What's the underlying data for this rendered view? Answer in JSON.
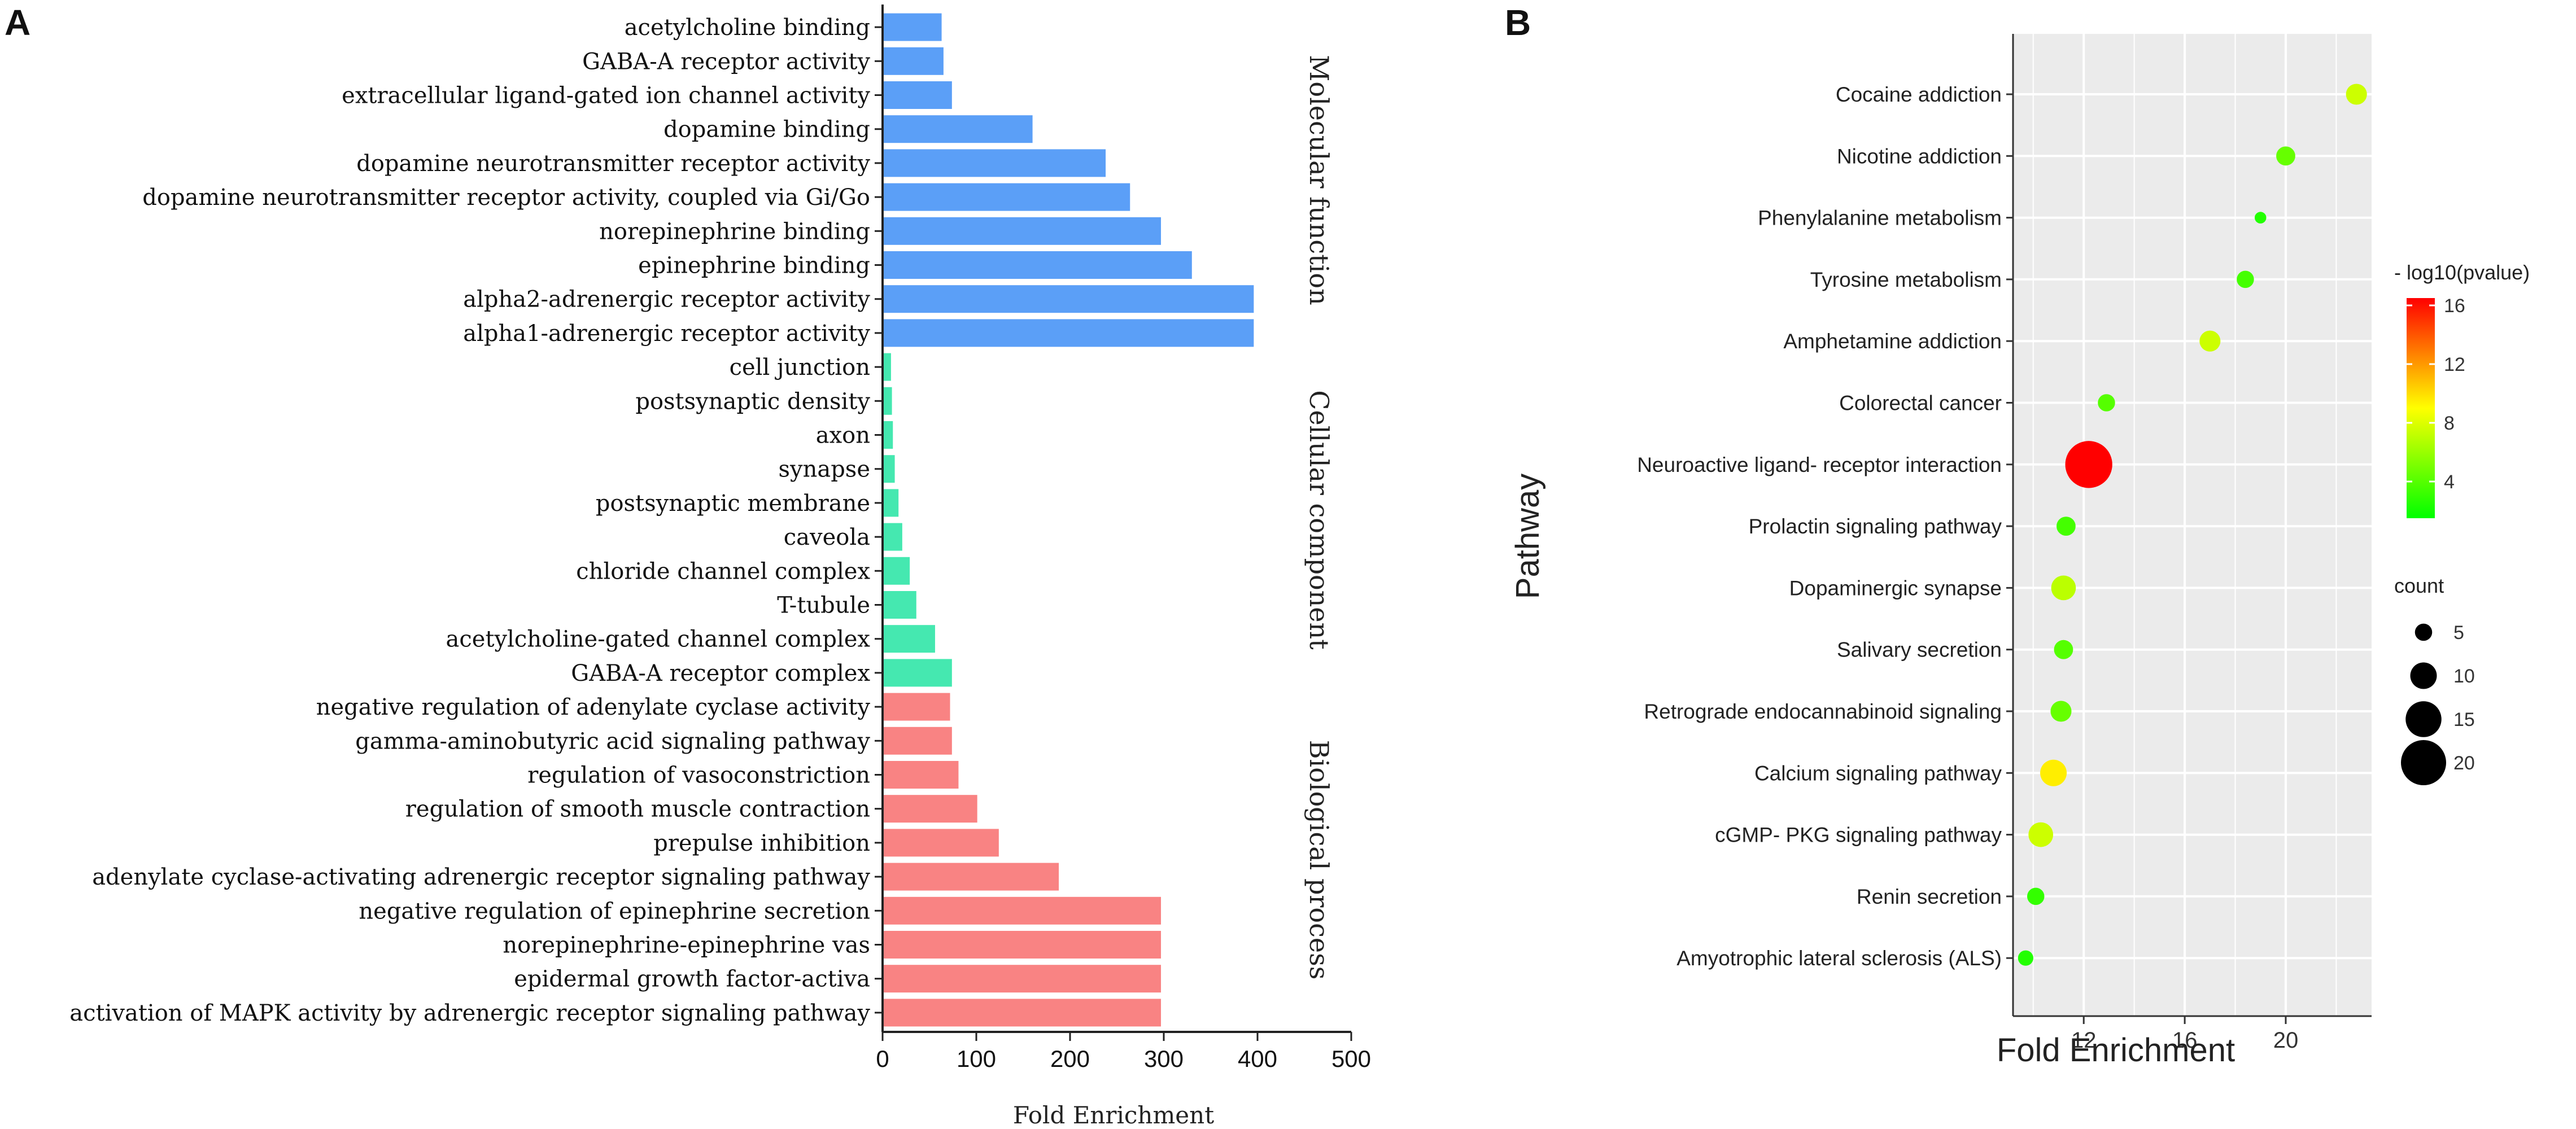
{
  "panels": {
    "a_label": "A",
    "b_label": "B"
  },
  "chart_data": [
    {
      "id": "panel-a",
      "type": "bar",
      "orientation": "horizontal",
      "xlabel": "Fold Enrichment",
      "xlim": [
        0,
        500
      ],
      "xticks": [
        "0",
        "100",
        "200",
        "300",
        "400",
        "500"
      ],
      "xtick_values": [
        0,
        100,
        200,
        300,
        400,
        500
      ],
      "groups": [
        {
          "name": "Molecular function",
          "color": "#5b9ff7",
          "categories": [
            "acetylcholine binding",
            "GABA-A receptor activity",
            "extracellular ligand-gated ion channel activity",
            "dopamine binding",
            "dopamine neurotransmitter receptor activity",
            "dopamine neurotransmitter receptor activity, coupled via Gi/Go",
            "norepinephrine binding",
            "epinephrine binding",
            "alpha2-adrenergic receptor activity",
            "alpha1-adrenergic receptor activity"
          ],
          "values": [
            63,
            65,
            74,
            160,
            238,
            264,
            297,
            330,
            396,
            396
          ]
        },
        {
          "name": "Cellular component",
          "color": "#45e8b0",
          "categories": [
            "cell junction",
            "postsynaptic density",
            "axon",
            "synapse",
            "postsynaptic membrane",
            "caveola",
            "chloride channel complex",
            "T-tubule",
            "acetylcholine-gated channel complex",
            "GABA-A receptor complex"
          ],
          "values": [
            9,
            10,
            11,
            13,
            17,
            21,
            29,
            36,
            56,
            74
          ]
        },
        {
          "name": "Biological process",
          "color": "#f98383",
          "categories": [
            "negative regulation of adenylate cyclase activity",
            "gamma-aminobutyric acid signaling pathway",
            "regulation of vasoconstriction",
            "regulation of smooth muscle contraction",
            "prepulse inhibition",
            "adenylate cyclase-activating adrenergic receptor signaling pathway",
            "negative regulation of epinephrine secretion",
            "norepinephrine-epinephrine vas",
            "epidermal growth factor-activa",
            "activation of MAPK activity by adrenergic receptor signaling pathway"
          ],
          "values": [
            72,
            74,
            81,
            101,
            124,
            188,
            297,
            297,
            297,
            297
          ]
        }
      ]
    },
    {
      "id": "panel-b",
      "type": "scatter",
      "xlabel": "Fold Enrichment",
      "ylabel": "Pathway",
      "xlim": [
        9.2,
        23.4
      ],
      "xticks": [
        "12",
        "16",
        "20"
      ],
      "xtick_values": [
        12,
        16,
        20
      ],
      "pathways": [
        "Cocaine addiction",
        "Nicotine addiction",
        "Phenylalanine metabolism",
        "Tyrosine metabolism",
        "Amphetamine addiction",
        "Colorectal cancer",
        "Neuroactive ligand- receptor interaction",
        "Prolactin signaling pathway",
        "Dopaminergic synapse",
        "Salivary secretion",
        "Retrograde endocannabinoid signaling",
        "Calcium signaling pathway",
        "cGMP- PKG signaling pathway",
        "Renin secretion",
        "Amyotrophic lateral sclerosis (ALS)"
      ],
      "fold_enrichment": [
        22.8,
        20.0,
        19.0,
        18.4,
        17.0,
        12.9,
        12.2,
        11.3,
        11.2,
        11.2,
        11.1,
        10.8,
        10.3,
        10.1,
        9.7
      ],
      "count": [
        7,
        6,
        2,
        5,
        7,
        5,
        21,
        6,
        9,
        6,
        7,
        10,
        9,
        5,
        4
      ],
      "neg_log10_pvalue": [
        7.5,
        4.5,
        2.5,
        3.5,
        7.5,
        4.0,
        16.5,
        3.5,
        7.0,
        4.0,
        4.5,
        9.5,
        7.5,
        3.0,
        2.5
      ],
      "color_legend": {
        "title": "- log10(pvalue)",
        "ticks": [
          "16",
          "12",
          "8",
          "4"
        ],
        "tick_values": [
          16,
          12,
          8,
          4
        ],
        "range": [
          1.5,
          16.5
        ],
        "color_low": "#00ff00",
        "color_high": "#ff0000"
      },
      "size_legend": {
        "title": "count",
        "labels": [
          "5",
          "10",
          "15",
          "20"
        ],
        "values": [
          5,
          10,
          15,
          20
        ]
      }
    }
  ]
}
